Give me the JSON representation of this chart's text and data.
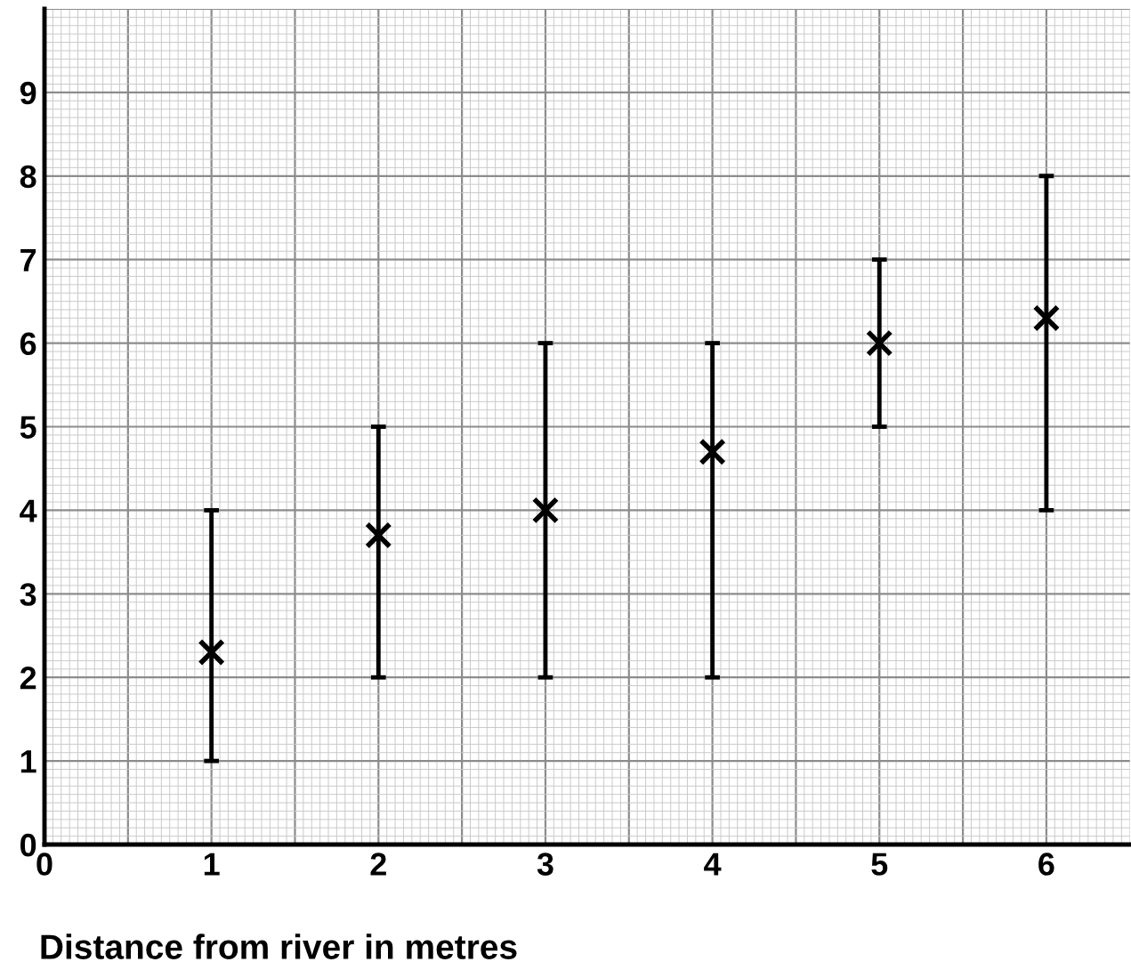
{
  "chart_data": {
    "type": "scatter",
    "xlabel": "Distance from river in metres",
    "x": [
      1,
      2,
      3,
      4,
      5,
      6
    ],
    "series": [
      {
        "color": "#000000",
        "values": [
          2.3,
          3.7,
          4.0,
          4.7,
          6.0,
          6.3
        ],
        "errors": [
          [
            1,
            4
          ],
          [
            2,
            5
          ],
          [
            2,
            6
          ],
          [
            2,
            6
          ],
          [
            5,
            7
          ],
          [
            4,
            8
          ]
        ]
      }
    ],
    "xlim": [
      0,
      6.5
    ],
    "xticks": [
      0,
      {
        "value": 0.5,
        "label": null
      },
      1,
      {
        "value": 1.5,
        "label": null
      },
      2,
      {
        "value": 2.5,
        "label": null
      },
      3,
      {
        "value": 3.5,
        "label": null
      },
      4,
      {
        "value": 4.5,
        "label": null
      },
      5,
      {
        "value": 5.5,
        "label": null
      },
      6
    ],
    "ylim": [
      0,
      10
    ],
    "yticks": [
      0,
      1,
      2,
      3,
      4,
      5,
      6,
      7,
      8,
      9,
      {
        "value": 10,
        "label": null
      }
    ],
    "grid": true,
    "marker": "cross",
    "line_style": "none"
  }
}
